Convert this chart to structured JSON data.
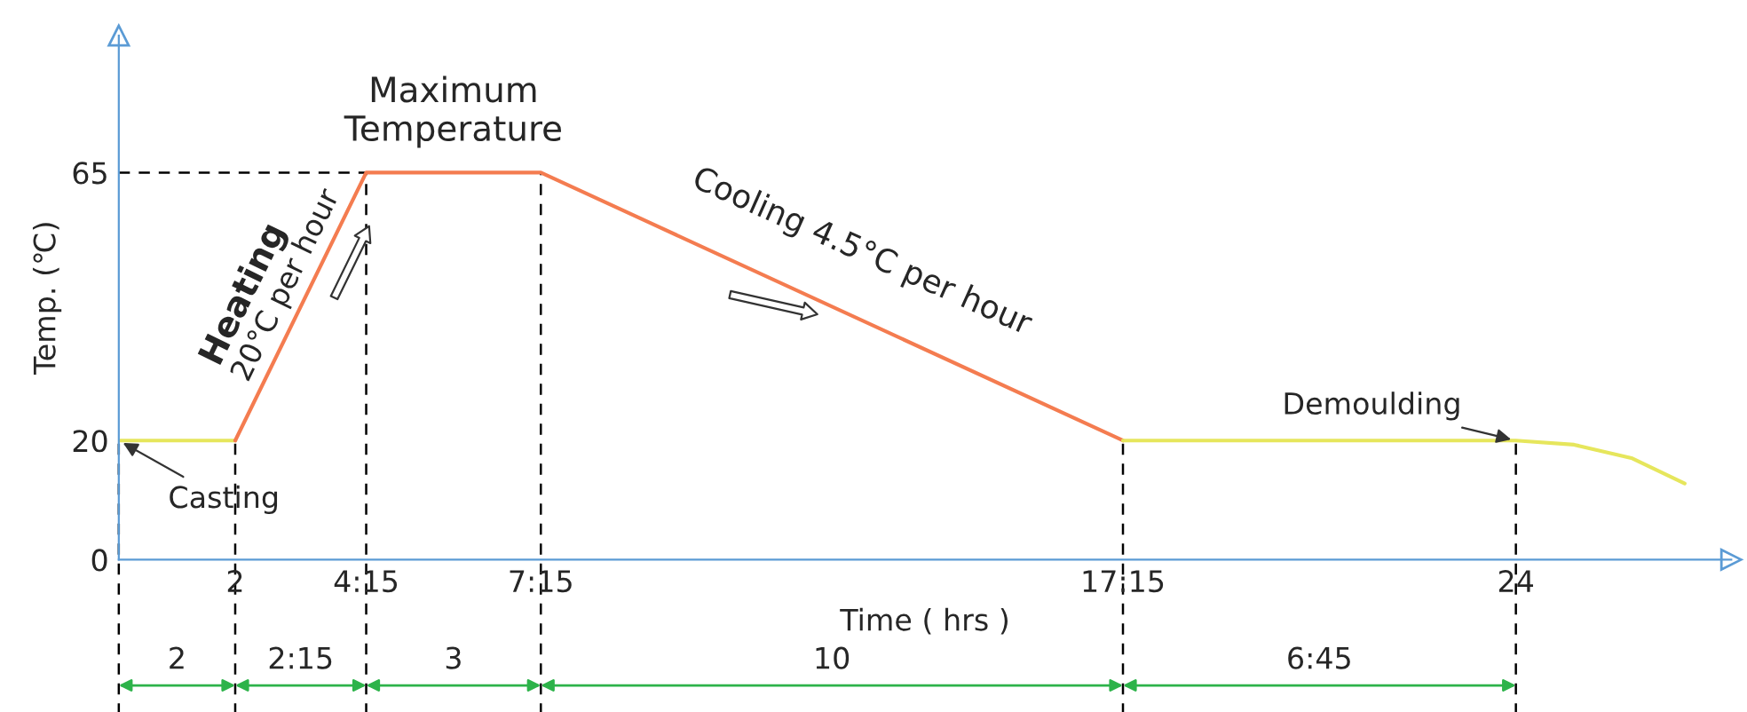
{
  "chart_data": {
    "type": "line",
    "xlabel": "Time ( hrs )",
    "ylabel": "Temp. (℃)",
    "xlim": [
      0,
      27.7
    ],
    "ylim": [
      0,
      88
    ],
    "xticks": [
      {
        "value": 2,
        "label": "2"
      },
      {
        "value": 4.25,
        "label": "4:15"
      },
      {
        "value": 7.25,
        "label": "7:15"
      },
      {
        "value": 17.25,
        "label": "17:15"
      },
      {
        "value": 24,
        "label": "24"
      }
    ],
    "yticks": [
      0,
      20,
      65
    ],
    "series": [
      {
        "color": "#e6e65c",
        "x": [
          0,
          2
        ],
        "values": [
          20,
          20
        ]
      },
      {
        "color": "#f47c50",
        "x": [
          2,
          4.25,
          7.25,
          17.25
        ],
        "values": [
          20,
          65,
          65,
          20
        ]
      },
      {
        "color": "#e6e65c",
        "x": [
          17.25,
          24,
          25,
          26,
          26.9
        ],
        "values": [
          20,
          20,
          19.3,
          17,
          12.8
        ]
      }
    ],
    "ref_lines": [
      {
        "axis": "y",
        "value": 65,
        "line_style": "dashed",
        "color": "#000000"
      },
      {
        "axis": "x",
        "value": 0,
        "line_style": "dashed",
        "color": "#000000"
      },
      {
        "axis": "x",
        "value": 2,
        "line_style": "dashed",
        "color": "#000000"
      },
      {
        "axis": "x",
        "value": 4.25,
        "line_style": "dashed",
        "color": "#000000"
      },
      {
        "axis": "x",
        "value": 7.25,
        "line_style": "dashed",
        "color": "#000000"
      },
      {
        "axis": "x",
        "value": 17.25,
        "line_style": "dashed",
        "color": "#000000"
      },
      {
        "axis": "x",
        "value": 24,
        "line_style": "dashed",
        "color": "#000000"
      }
    ],
    "annotations": [
      {
        "text": "Casting",
        "x": 0,
        "y": 20
      },
      {
        "text": "Heating",
        "x": 3.0,
        "y": 42
      },
      {
        "text": "20°C per hour",
        "x": 3.3,
        "y": 46
      },
      {
        "text": "Maximum\nTemperature",
        "x": 5.75,
        "y": 65
      },
      {
        "text": "Cooling 4.5°C per hour",
        "x": 12.25,
        "y": 42.5
      },
      {
        "text": "Demoulding",
        "x": 24,
        "y": 20
      },
      "2",
      "2:15",
      "3",
      "10",
      "6:45"
    ]
  }
}
